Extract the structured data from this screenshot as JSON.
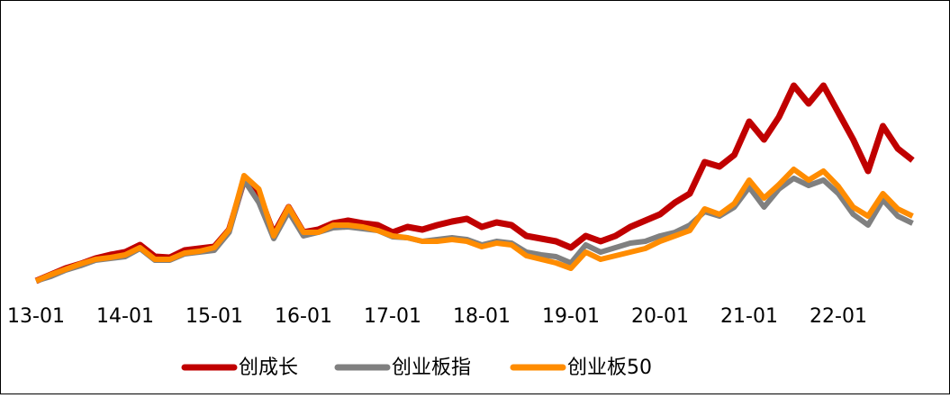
{
  "chart_data": {
    "type": "line",
    "categories": [
      "13-01",
      null,
      null,
      null,
      null,
      null,
      "14-01",
      null,
      null,
      null,
      null,
      null,
      "15-01",
      null,
      null,
      null,
      null,
      null,
      "16-01",
      null,
      null,
      null,
      null,
      null,
      "17-01",
      null,
      null,
      null,
      null,
      null,
      "18-01",
      null,
      null,
      null,
      null,
      null,
      "19-01",
      null,
      null,
      null,
      null,
      null,
      "20-01",
      null,
      null,
      null,
      null,
      null,
      "21-01",
      null,
      null,
      null,
      null,
      null,
      "22-01",
      null,
      null,
      null,
      null,
      null
    ],
    "series": [
      {
        "name": "创成长",
        "color": "#c00000",
        "values": [
          100,
          107,
          114,
          119,
          125,
          129,
          132,
          140,
          127,
          126,
          134,
          136,
          138,
          157,
          212,
          197,
          152,
          182,
          154,
          157,
          164,
          167,
          164,
          162,
          154,
          160,
          157,
          162,
          166,
          169,
          160,
          165,
          162,
          150,
          147,
          144,
          137,
          150,
          144,
          150,
          160,
          167,
          174,
          187,
          197,
          232,
          227,
          240,
          277,
          257,
          282,
          317,
          297,
          317,
          287,
          257,
          222,
          272,
          247,
          234
        ]
      },
      {
        "name": "创业板指",
        "color": "#808080",
        "values": [
          100,
          105,
          112,
          117,
          123,
          125,
          127,
          136,
          123,
          123,
          130,
          132,
          134,
          154,
          212,
          187,
          147,
          177,
          150,
          154,
          159,
          160,
          158,
          156,
          149,
          148,
          144,
          146,
          148,
          146,
          140,
          144,
          142,
          132,
          129,
          127,
          120,
          140,
          132,
          137,
          142,
          144,
          150,
          154,
          162,
          177,
          172,
          182,
          204,
          182,
          202,
          214,
          206,
          212,
          197,
          174,
          162,
          190,
          172,
          164
        ]
      },
      {
        "name": "创业板50",
        "color": "#ff8c00",
        "values": [
          100,
          107,
          113,
          119,
          124,
          126,
          129,
          137,
          124,
          124,
          131,
          133,
          137,
          157,
          217,
          202,
          150,
          182,
          154,
          154,
          162,
          162,
          160,
          156,
          150,
          148,
          144,
          144,
          146,
          144,
          138,
          142,
          140,
          128,
          124,
          120,
          114,
          132,
          124,
          128,
          132,
          136,
          144,
          150,
          156,
          180,
          174,
          186,
          212,
          192,
          207,
          224,
          212,
          222,
          205,
          182,
          172,
          197,
          180,
          172
        ]
      }
    ],
    "legend": "bottom"
  }
}
